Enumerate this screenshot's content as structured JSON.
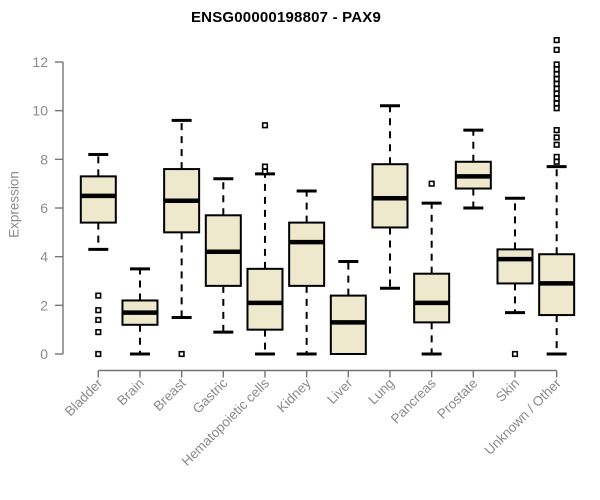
{
  "colors": {
    "background": "#ffffff",
    "box_fill": "#eee8cd",
    "box_stroke": "#000000",
    "median": "#000000",
    "whisker": "#000000",
    "outlier_stroke": "#000000",
    "outlier_fill": "#ffffff",
    "axis": "#757575",
    "tick_label": "#8a8a8a",
    "title": "#000000"
  },
  "chart_data": {
    "type": "boxplot",
    "title": "ENSG00000198807 - PAX9",
    "xlabel": "",
    "ylabel": "Expression",
    "ylim": [
      0,
      13.2
    ],
    "yticks": [
      0,
      2,
      4,
      6,
      8,
      10,
      12
    ],
    "grid": false,
    "legend": false,
    "categories": [
      "Bladder",
      "Brain",
      "Breast",
      "Gastric",
      "Hematopoietic cells",
      "Kidney",
      "Liver",
      "Lung",
      "Pancreas",
      "Prostate",
      "Skin",
      "Unknown / Other"
    ],
    "series": [
      {
        "label": "Bladder",
        "low": 4.3,
        "q1": 5.4,
        "median": 6.5,
        "q3": 7.3,
        "high": 8.2,
        "outliers": [
          2.4,
          1.8,
          1.4,
          0.9,
          0.0
        ]
      },
      {
        "label": "Brain",
        "low": 0.0,
        "q1": 1.2,
        "median": 1.7,
        "q3": 2.2,
        "high": 3.5,
        "outliers": []
      },
      {
        "label": "Breast",
        "low": 1.5,
        "q1": 5.0,
        "median": 6.3,
        "q3": 7.6,
        "high": 9.6,
        "outliers": [
          0.0
        ]
      },
      {
        "label": "Gastric",
        "low": 0.9,
        "q1": 2.8,
        "median": 4.2,
        "q3": 5.7,
        "high": 7.2,
        "outliers": []
      },
      {
        "label": "Hematopoietic cells",
        "low": 0.0,
        "q1": 1.0,
        "median": 2.1,
        "q3": 3.5,
        "high": 7.4,
        "outliers": [
          9.4,
          7.7,
          7.5
        ]
      },
      {
        "label": "Kidney",
        "low": 0.0,
        "q1": 2.8,
        "median": 4.6,
        "q3": 5.4,
        "high": 6.7,
        "outliers": []
      },
      {
        "label": "Liver",
        "low": 0.0,
        "q1": 0.0,
        "median": 1.3,
        "q3": 2.4,
        "high": 3.8,
        "outliers": []
      },
      {
        "label": "Lung",
        "low": 2.7,
        "q1": 5.2,
        "median": 6.4,
        "q3": 7.8,
        "high": 10.2,
        "outliers": []
      },
      {
        "label": "Pancreas",
        "low": 0.0,
        "q1": 1.3,
        "median": 2.1,
        "q3": 3.3,
        "high": 6.2,
        "outliers": [
          7.0
        ]
      },
      {
        "label": "Prostate",
        "low": 6.0,
        "q1": 6.8,
        "median": 7.3,
        "q3": 7.9,
        "high": 9.2,
        "outliers": []
      },
      {
        "label": "Skin",
        "low": 1.7,
        "q1": 2.9,
        "median": 3.9,
        "q3": 4.3,
        "high": 6.4,
        "outliers": [
          0.0
        ]
      },
      {
        "label": "Unknown / Other",
        "low": 0.0,
        "q1": 1.6,
        "median": 2.9,
        "q3": 4.1,
        "high": 7.7,
        "outliers": [
          12.9,
          12.5,
          11.9,
          11.7,
          11.5,
          11.3,
          11.1,
          10.9,
          10.7,
          10.5,
          10.3,
          10.1,
          9.2,
          8.9,
          8.6,
          8.1,
          7.9
        ]
      }
    ]
  }
}
